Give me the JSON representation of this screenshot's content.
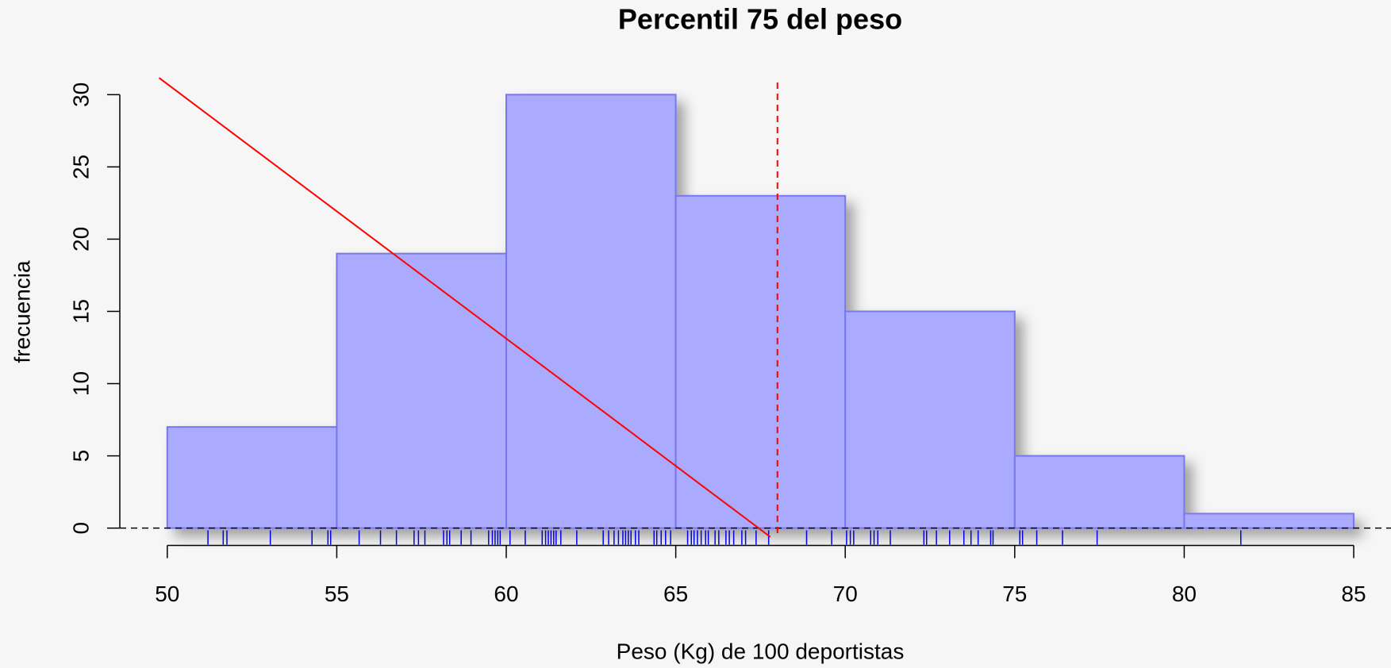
{
  "chart_data": {
    "type": "histogram",
    "title": "Percentil 75 del peso",
    "xlabel": "Peso (Kg) de 100 deportistas",
    "ylabel": "frecuencia",
    "bins": [
      50,
      55,
      60,
      65,
      70,
      75,
      80,
      85
    ],
    "values": [
      7,
      19,
      30,
      23,
      15,
      5,
      1
    ],
    "color": "#aaaaff",
    "edgecolor": "#7777ee",
    "xlim": [
      48.6,
      86.1
    ],
    "ylim": [
      -1.2,
      31.5
    ],
    "xticks": [
      50,
      55,
      60,
      65,
      70,
      75,
      80,
      85
    ],
    "yticks": [
      0,
      5,
      10,
      15,
      20,
      25,
      30
    ],
    "rug": {
      "color": "#0000ee",
      "values": [
        51.2,
        51.65,
        51.76,
        53.04,
        54.27,
        54.74,
        54.82,
        55.66,
        56.29,
        56.76,
        57.28,
        57.41,
        57.6,
        58.15,
        58.25,
        58.33,
        58.67,
        58.96,
        59.48,
        59.59,
        59.67,
        59.75,
        59.82,
        60.11,
        60.56,
        61.06,
        61.16,
        61.24,
        61.32,
        61.4,
        61.47,
        61.61,
        62.08,
        62.86,
        63.02,
        63.18,
        63.31,
        63.44,
        63.52,
        63.6,
        63.68,
        63.81,
        63.91,
        64.36,
        64.44,
        64.57,
        64.7,
        64.85,
        65.35,
        65.46,
        65.54,
        65.64,
        65.75,
        65.88,
        65.96,
        66.16,
        66.27,
        66.48,
        66.58,
        66.71,
        66.95,
        67.06,
        67.37,
        67.74,
        68.86,
        69.6,
        70.04,
        70.15,
        70.25,
        70.75,
        70.85,
        70.96,
        71.33,
        72.32,
        72.4,
        72.69,
        73.08,
        73.5,
        73.71,
        73.92,
        74.29,
        74.36,
        75.15,
        75.23,
        75.65,
        76.41,
        77.43,
        81.67
      ]
    },
    "vline": {
      "x": 68,
      "color": "#ff0000"
    },
    "hline": {
      "y": 0,
      "color": "#000000"
    },
    "line": {
      "x": [
        49.76,
        67.79
      ],
      "y": [
        31.16,
        -0.61
      ],
      "color": "#ff0000"
    }
  }
}
